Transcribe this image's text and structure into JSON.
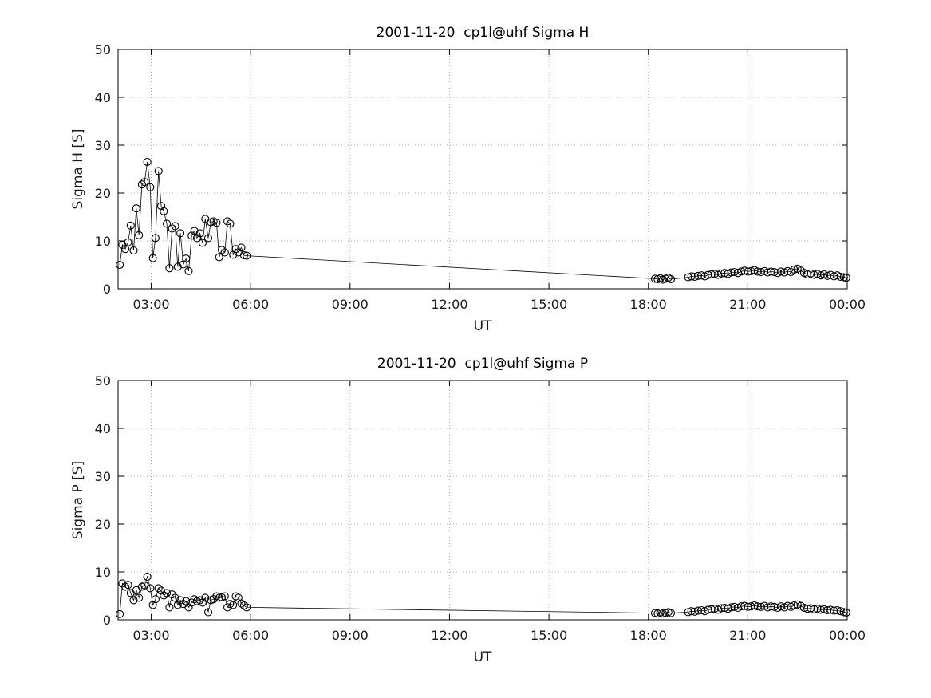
{
  "figure": {
    "background": "#ffffff",
    "axis_color": "#000000",
    "grid_color": "#b5b5b5",
    "data_color": "#000000"
  },
  "chart_data": [
    {
      "type": "line",
      "name": "sigma-h-chart",
      "title": "2001-11-20  cp1l@uhf Sigma H",
      "xlabel": "UT",
      "ylabel": "Sigma H [S]",
      "xlim": [
        2,
        24
      ],
      "ylim": [
        0,
        50
      ],
      "xticks": [
        3,
        6,
        9,
        12,
        15,
        18,
        21,
        24
      ],
      "xtick_labels": [
        "03:00",
        "06:00",
        "09:00",
        "12:00",
        "15:00",
        "18:00",
        "21:00",
        "00:00"
      ],
      "yticks": [
        0,
        10,
        20,
        30,
        40,
        50
      ],
      "ytick_labels": [
        "0",
        "10",
        "20",
        "30",
        "40",
        "50"
      ],
      "grid": true,
      "marker": "circle",
      "legend": "none",
      "series": [
        {
          "name": "sigma_h",
          "x": [
            2.05,
            2.13,
            2.22,
            2.3,
            2.38,
            2.47,
            2.55,
            2.63,
            2.72,
            2.8,
            2.88,
            2.97,
            3.05,
            3.13,
            3.22,
            3.3,
            3.38,
            3.47,
            3.55,
            3.63,
            3.72,
            3.8,
            3.88,
            3.97,
            4.05,
            4.13,
            4.22,
            4.3,
            4.38,
            4.47,
            4.55,
            4.63,
            4.72,
            4.8,
            4.88,
            4.97,
            5.05,
            5.13,
            5.22,
            5.3,
            5.38,
            5.47,
            5.55,
            5.63,
            5.72,
            5.8,
            5.88,
            18.2,
            18.28,
            18.36,
            18.44,
            18.52,
            18.6,
            18.68,
            19.2,
            19.3,
            19.4,
            19.5,
            19.6,
            19.7,
            19.8,
            19.9,
            20.0,
            20.1,
            20.2,
            20.3,
            20.4,
            20.5,
            20.6,
            20.7,
            20.8,
            20.9,
            21.0,
            21.1,
            21.2,
            21.3,
            21.4,
            21.5,
            21.6,
            21.7,
            21.8,
            21.9,
            22.0,
            22.1,
            22.2,
            22.3,
            22.4,
            22.5,
            22.6,
            22.7,
            22.8,
            22.9,
            23.0,
            23.1,
            23.2,
            23.3,
            23.4,
            23.5,
            23.6,
            23.7,
            23.8,
            23.9,
            23.97
          ],
          "y": [
            5.0,
            9.2,
            8.3,
            9.7,
            13.2,
            8.0,
            16.8,
            11.2,
            21.8,
            22.3,
            26.5,
            21.2,
            6.4,
            10.6,
            24.6,
            17.3,
            16.2,
            13.6,
            4.3,
            12.6,
            13.1,
            4.6,
            11.6,
            5.1,
            6.3,
            3.7,
            11.1,
            12.1,
            10.6,
            11.6,
            9.6,
            14.6,
            10.6,
            13.9,
            14.1,
            13.8,
            6.6,
            8.1,
            7.6,
            14.1,
            13.6,
            7.1,
            8.3,
            7.6,
            8.6,
            7.0,
            6.9,
            2.1,
            2.0,
            2.2,
            1.9,
            2.1,
            2.3,
            2.0,
            2.4,
            2.6,
            2.5,
            2.7,
            2.8,
            2.6,
            2.9,
            3.0,
            3.1,
            2.9,
            3.2,
            3.3,
            3.1,
            3.4,
            3.5,
            3.3,
            3.6,
            3.8,
            3.6,
            3.7,
            3.9,
            3.6,
            3.5,
            3.7,
            3.4,
            3.6,
            3.5,
            3.3,
            3.6,
            3.4,
            3.7,
            3.5,
            4.0,
            4.2,
            3.8,
            3.3,
            3.0,
            3.2,
            2.9,
            3.1,
            2.8,
            3.0,
            2.7,
            2.9,
            2.6,
            2.8,
            2.5,
            2.4,
            2.3
          ]
        }
      ]
    },
    {
      "type": "line",
      "name": "sigma-p-chart",
      "title": "2001-11-20  cp1l@uhf Sigma P",
      "xlabel": "UT",
      "ylabel": "Sigma P [S]",
      "xlim": [
        2,
        24
      ],
      "ylim": [
        0,
        50
      ],
      "xticks": [
        3,
        6,
        9,
        12,
        15,
        18,
        21,
        24
      ],
      "xtick_labels": [
        "03:00",
        "06:00",
        "09:00",
        "12:00",
        "15:00",
        "18:00",
        "21:00",
        "00:00"
      ],
      "yticks": [
        0,
        10,
        20,
        30,
        40,
        50
      ],
      "ytick_labels": [
        "0",
        "10",
        "20",
        "30",
        "40",
        "50"
      ],
      "grid": true,
      "marker": "circle",
      "legend": "none",
      "series": [
        {
          "name": "sigma_p",
          "x": [
            2.05,
            2.13,
            2.22,
            2.3,
            2.38,
            2.47,
            2.55,
            2.63,
            2.72,
            2.8,
            2.88,
            2.97,
            3.05,
            3.13,
            3.22,
            3.3,
            3.38,
            3.47,
            3.55,
            3.63,
            3.72,
            3.8,
            3.88,
            3.97,
            4.05,
            4.13,
            4.22,
            4.3,
            4.38,
            4.47,
            4.55,
            4.63,
            4.72,
            4.8,
            4.88,
            4.97,
            5.05,
            5.13,
            5.22,
            5.3,
            5.38,
            5.47,
            5.55,
            5.63,
            5.72,
            5.8,
            5.88,
            18.2,
            18.28,
            18.36,
            18.44,
            18.52,
            18.6,
            18.68,
            19.2,
            19.3,
            19.4,
            19.5,
            19.6,
            19.7,
            19.8,
            19.9,
            20.0,
            20.1,
            20.2,
            20.3,
            20.4,
            20.5,
            20.6,
            20.7,
            20.8,
            20.9,
            21.0,
            21.1,
            21.2,
            21.3,
            21.4,
            21.5,
            21.6,
            21.7,
            21.8,
            21.9,
            22.0,
            22.1,
            22.2,
            22.3,
            22.4,
            22.5,
            22.6,
            22.7,
            22.8,
            22.9,
            23.0,
            23.1,
            23.2,
            23.3,
            23.4,
            23.5,
            23.6,
            23.7,
            23.8,
            23.9,
            23.97
          ],
          "y": [
            1.2,
            7.6,
            6.9,
            7.3,
            5.6,
            4.1,
            6.2,
            4.6,
            6.9,
            7.2,
            9.0,
            6.6,
            3.1,
            4.3,
            6.6,
            6.1,
            5.1,
            5.6,
            2.6,
            5.3,
            4.6,
            3.1,
            4.1,
            3.3,
            3.9,
            2.6,
            3.6,
            4.3,
            3.9,
            4.1,
            3.6,
            4.6,
            1.6,
            4.1,
            4.3,
            4.9,
            4.6,
            4.7,
            4.9,
            2.6,
            3.3,
            3.1,
            4.9,
            4.6,
            3.4,
            3.0,
            2.6,
            1.4,
            1.3,
            1.5,
            1.3,
            1.4,
            1.6,
            1.4,
            1.6,
            1.8,
            1.7,
            1.9,
            2.0,
            1.8,
            2.1,
            2.2,
            2.3,
            2.1,
            2.4,
            2.5,
            2.3,
            2.6,
            2.7,
            2.5,
            2.8,
            2.9,
            2.7,
            2.8,
            3.0,
            2.8,
            2.7,
            2.9,
            2.6,
            2.8,
            2.7,
            2.5,
            2.8,
            2.6,
            2.9,
            2.7,
            3.0,
            3.2,
            2.9,
            2.5,
            2.3,
            2.4,
            2.2,
            2.3,
            2.1,
            2.2,
            2.0,
            2.1,
            1.9,
            2.0,
            1.8,
            1.6,
            1.5
          ]
        }
      ]
    }
  ]
}
